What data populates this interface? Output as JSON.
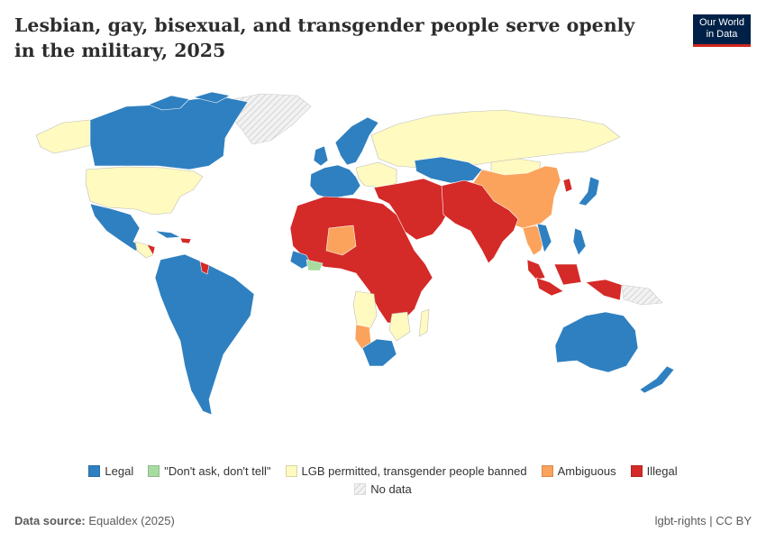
{
  "header": {
    "title": "Lesbian, gay, bisexual, and transgender people serve openly in the military, 2025",
    "logo_line1": "Our World",
    "logo_line2": "in Data"
  },
  "legend": {
    "items": [
      {
        "label": "Legal",
        "color": "#2f80c0"
      },
      {
        "label": "\"Don't ask, don't tell\"",
        "color": "#a8dba0"
      },
      {
        "label": "LGB permitted, transgender people banned",
        "color": "#fffac0"
      },
      {
        "label": "Ambiguous",
        "color": "#fba35c"
      },
      {
        "label": "Illegal",
        "color": "#d42a28"
      }
    ],
    "nodata_label": "No data"
  },
  "footer": {
    "source_label": "Data source:",
    "source_value": "Equaldex (2025)",
    "tags": "lgbt-rights | CC BY"
  },
  "colors": {
    "legal": "#2f80c0",
    "dadt": "#a8dba0",
    "lgb": "#fffac0",
    "ambiguous": "#fba35c",
    "illegal": "#d42a28",
    "nodata": "#e6e6e6"
  }
}
